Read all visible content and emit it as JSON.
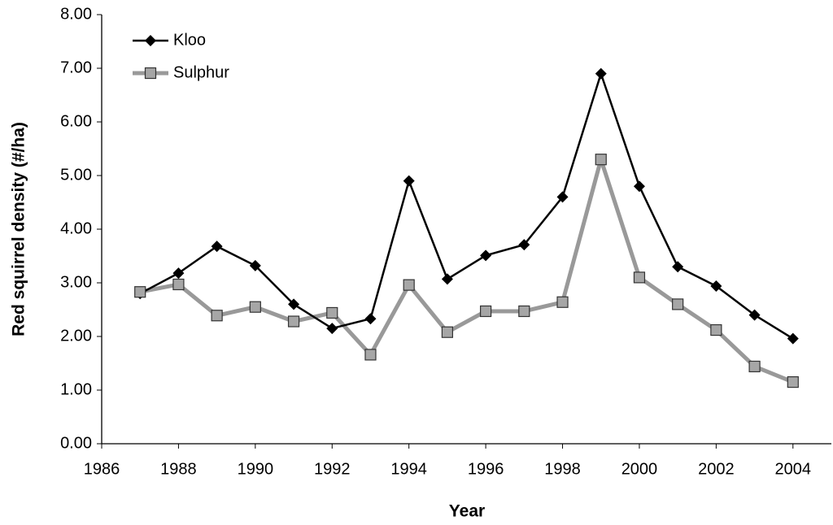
{
  "chart_data": {
    "type": "line",
    "x_label": "Year",
    "y_label": "Red squirrel density (#/ha)",
    "x": [
      1987,
      1988,
      1989,
      1990,
      1991,
      1992,
      1993,
      1994,
      1995,
      1996,
      1997,
      1998,
      1999,
      2000,
      2001,
      2002,
      2003,
      2004
    ],
    "series": [
      {
        "name": "Kloo",
        "color": "#000000",
        "marker": "diamond",
        "values": [
          2.8,
          3.18,
          3.68,
          3.32,
          2.6,
          2.15,
          2.33,
          4.9,
          3.07,
          3.51,
          3.71,
          4.6,
          6.9,
          4.8,
          3.3,
          2.94,
          2.4,
          1.96
        ]
      },
      {
        "name": "Sulphur",
        "color": "#999999",
        "marker": "square",
        "values": [
          2.83,
          2.97,
          2.39,
          2.55,
          2.28,
          2.44,
          1.66,
          2.96,
          2.08,
          2.47,
          2.47,
          2.64,
          5.3,
          3.1,
          2.6,
          2.12,
          1.44,
          1.15
        ]
      }
    ],
    "xlim": [
      1986,
      2005
    ],
    "xticks": [
      1986,
      1988,
      1990,
      1992,
      1994,
      1996,
      1998,
      2000,
      2002,
      2004
    ],
    "ylim": [
      0,
      8
    ],
    "yticks": [
      {
        "value": 0,
        "label": "0.00"
      },
      {
        "value": 1,
        "label": "1.00"
      },
      {
        "value": 2,
        "label": "2.00"
      },
      {
        "value": 3,
        "label": "3.00"
      },
      {
        "value": 4,
        "label": "4.00"
      },
      {
        "value": 5,
        "label": "5.00"
      },
      {
        "value": 6,
        "label": "6.00"
      },
      {
        "value": 7,
        "label": "7.00"
      },
      {
        "value": 8,
        "label": "8.00"
      }
    ],
    "grid": false,
    "legend": "upper-left"
  }
}
